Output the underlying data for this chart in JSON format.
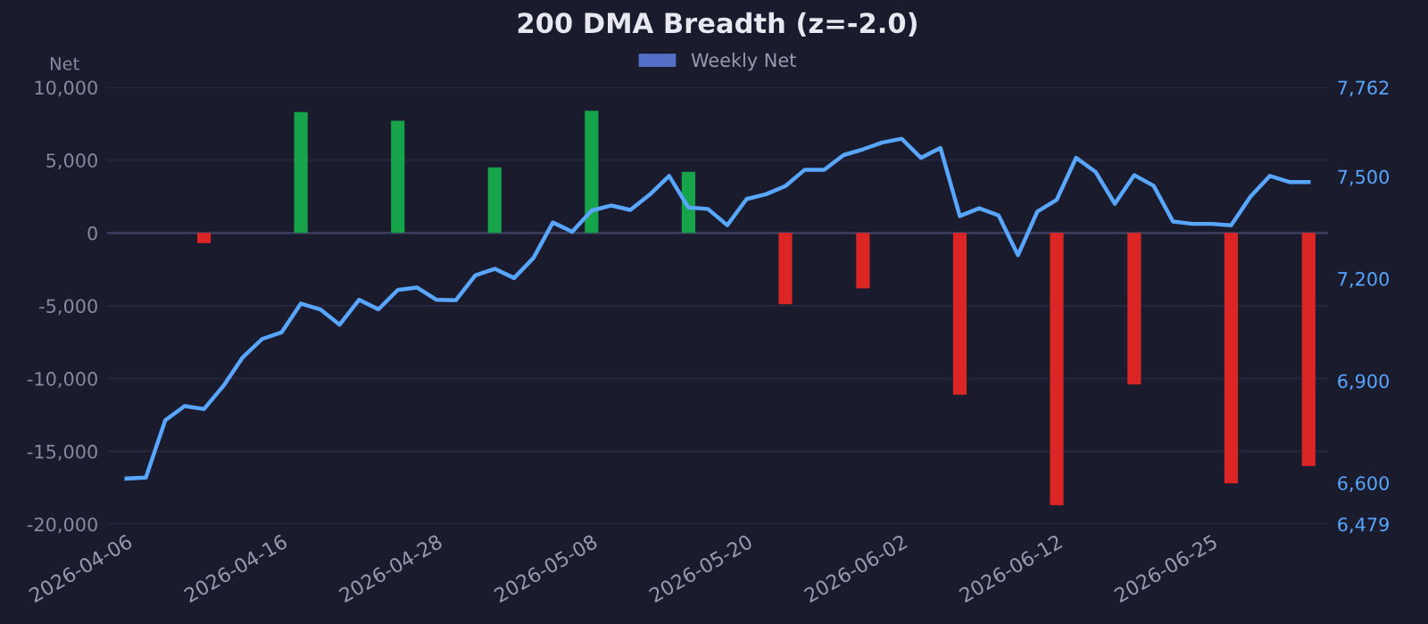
{
  "chart_data": {
    "type": "bar",
    "title": "200 DMA Breadth (z=-2.0)",
    "ylabel": "Net",
    "categories": [
      "2026-04-06",
      null,
      null,
      null,
      null,
      null,
      null,
      null,
      "2026-04-16",
      null,
      null,
      null,
      null,
      null,
      null,
      null,
      "2026-04-28",
      null,
      null,
      null,
      null,
      null,
      null,
      null,
      "2026-05-08",
      null,
      null,
      null,
      null,
      null,
      null,
      null,
      "2026-05-20",
      null,
      null,
      null,
      null,
      null,
      null,
      null,
      "2026-06-02",
      null,
      null,
      null,
      null,
      null,
      null,
      null,
      "2026-06-12",
      null,
      null,
      null,
      null,
      null,
      null,
      null,
      "2026-06-25",
      null,
      null,
      null,
      null,
      null
    ],
    "series": [
      {
        "name": "Weekly Net",
        "color": "#5470c6",
        "colors": [
          "#16a34a",
          "#16a34a",
          "#16a34a",
          "#16a34a",
          "#dc2626",
          "#16a34a",
          "#16a34a",
          "#16a34a",
          "#16a34a",
          "#16a34a",
          "#16a34a",
          "#16a34a",
          "#16a34a",
          "#16a34a",
          "#16a34a",
          "#16a34a",
          "#16a34a",
          "#16a34a",
          "#16a34a",
          "#16a34a",
          "#16a34a",
          "#16a34a",
          "#16a34a",
          "#16a34a",
          "#16a34a",
          "#16a34a",
          "#16a34a",
          "#16a34a",
          "#16a34a",
          "#16a34a",
          "#16a34a",
          "#16a34a",
          "#16a34a",
          "#16a34a",
          "#dc2626",
          "#16a34a",
          "#16a34a",
          "#16a34a",
          "#dc2626",
          "#16a34a",
          "#16a34a",
          "#16a34a",
          "#16a34a",
          "#dc2626",
          "#16a34a",
          "#16a34a",
          "#16a34a",
          "#16a34a",
          "#dc2626",
          "#16a34a",
          "#16a34a",
          "#16a34a",
          "#dc2626",
          "#16a34a",
          "#16a34a",
          "#16a34a",
          "#16a34a",
          "#dc2626",
          "#16a34a",
          "#16a34a",
          "#16a34a",
          "#dc2626"
        ],
        "values": [
          null,
          null,
          null,
          null,
          -700,
          null,
          null,
          null,
          null,
          8300,
          null,
          null,
          null,
          null,
          7700,
          null,
          null,
          null,
          null,
          4500,
          null,
          null,
          null,
          null,
          8400,
          null,
          null,
          null,
          null,
          4200,
          null,
          null,
          null,
          null,
          -4900,
          null,
          null,
          null,
          -3800,
          null,
          null,
          null,
          null,
          -11100,
          null,
          null,
          null,
          null,
          -18700,
          null,
          null,
          null,
          -10400,
          null,
          null,
          null,
          null,
          -17200,
          null,
          null,
          null,
          -16000
        ]
      },
      {
        "type": "line",
        "axis": "y2",
        "color": "#58a6ff",
        "marker": "none",
        "values": [
          6613,
          6616,
          6784,
          6826,
          6817,
          6885,
          6969,
          7023,
          7042,
          7127,
          7110,
          7065,
          7138,
          7110,
          7167,
          7174,
          7138,
          7137,
          7210,
          7229,
          7202,
          7261,
          7365,
          7338,
          7400,
          7415,
          7402,
          7447,
          7502,
          7409,
          7405,
          7357,
          7434,
          7448,
          7472,
          7520,
          7520,
          7563,
          7580,
          7600,
          7611,
          7555,
          7584,
          7384,
          7407,
          7386,
          7269,
          7397,
          7432,
          7555,
          7514,
          7420,
          7504,
          7473,
          7368,
          7361,
          7361,
          7357,
          7441,
          7502,
          7484,
          7484
        ]
      }
    ],
    "ylim": [
      -20000,
      10000
    ],
    "yticks": [
      {
        "value": -20000,
        "label": "-20,000"
      },
      {
        "value": -15000,
        "label": "-15,000"
      },
      {
        "value": -10000,
        "label": "-10,000"
      },
      {
        "value": -5000,
        "label": "-5,000"
      },
      {
        "value": 0,
        "label": "0"
      },
      {
        "value": 5000,
        "label": "5,000"
      },
      {
        "value": 10000,
        "label": "10,000"
      }
    ],
    "y2lim": [
      6479,
      7762
    ],
    "y2ticks": [
      {
        "value": 6479,
        "label": "6,479"
      },
      {
        "value": 6600,
        "label": "6,600"
      },
      {
        "value": 6900,
        "label": "6,900"
      },
      {
        "value": 7200,
        "label": "7,200"
      },
      {
        "value": 7500,
        "label": "7,500"
      },
      {
        "value": 7762,
        "label": "7,762"
      }
    ],
    "grid": "y",
    "legend": "top"
  }
}
